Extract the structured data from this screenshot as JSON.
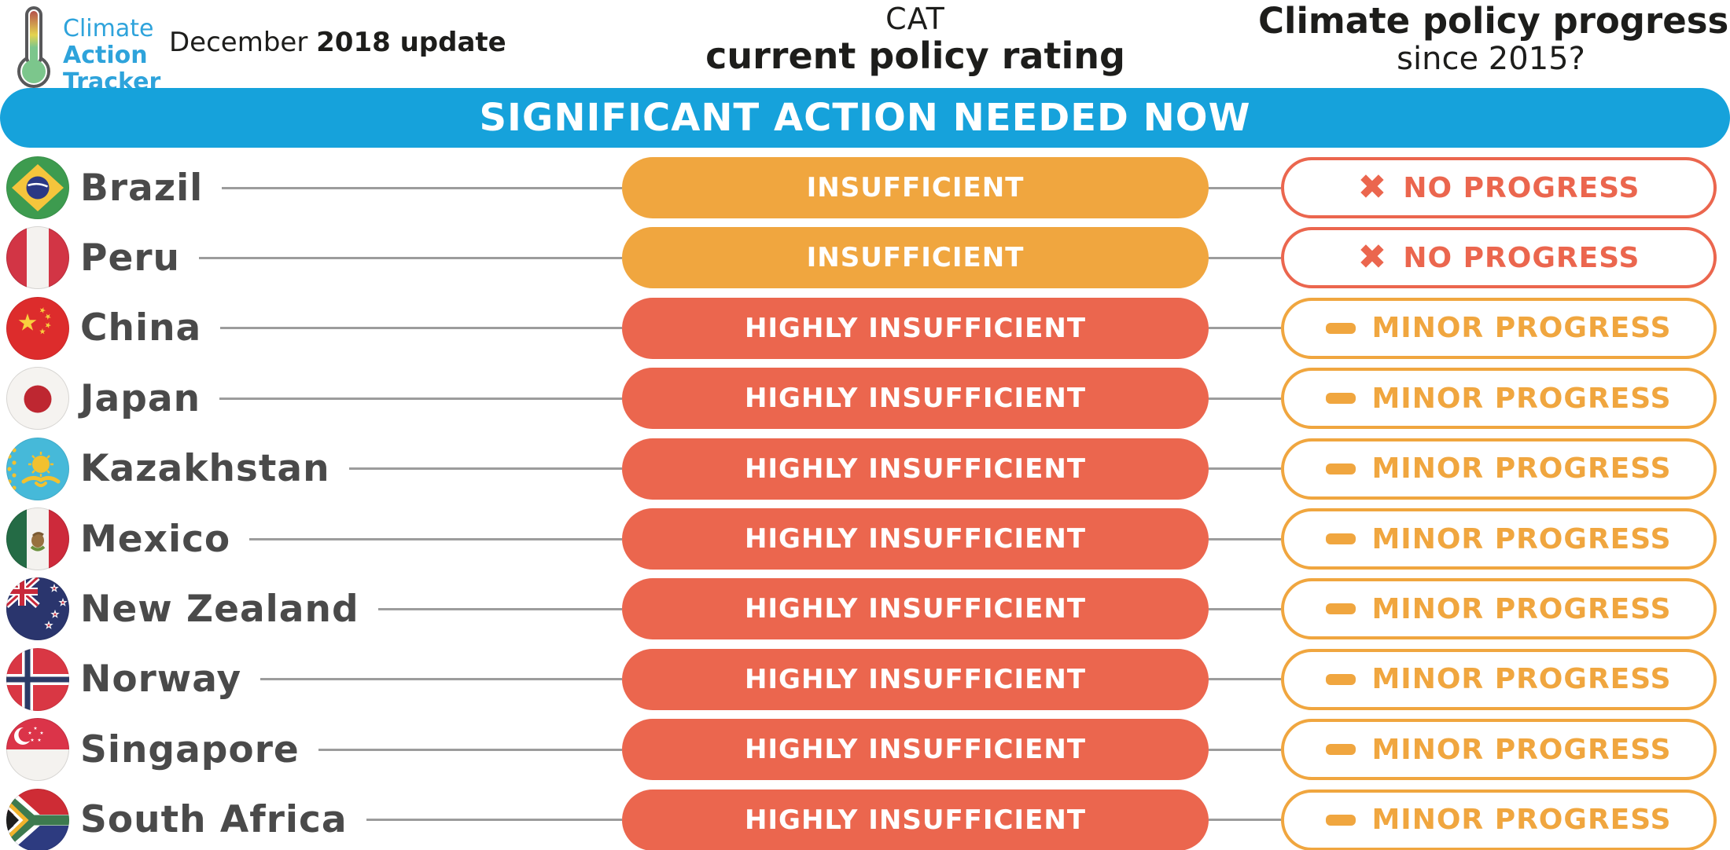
{
  "logo": {
    "line1": "Climate",
    "line2": "Action",
    "line3": "Tracker"
  },
  "header": {
    "date_regular": "December ",
    "date_bold": "2018 update",
    "rating_col_line1": "CAT",
    "rating_col_line2": "current policy rating",
    "progress_col_line1": "Climate policy progress",
    "progress_col_line2": "since 2015?"
  },
  "banner": {
    "label": "SIGNIFICANT ACTION NEEDED NOW",
    "color": "#16a2db"
  },
  "colors": {
    "red_orange": "#eb664e",
    "orange": "#f0a63f",
    "banner_blue": "#16a2db",
    "label_gray": "#4a4a4a",
    "logo_blue": "#2ea3db"
  },
  "chart_data": {
    "type": "table",
    "title": "SIGNIFICANT ACTION NEEDED NOW",
    "subtitle_left": "December 2018 update",
    "columns": [
      "Country",
      "CAT current policy rating",
      "Climate policy progress since 2015?"
    ],
    "rows": [
      [
        "Brazil",
        "INSUFFICIENT",
        "NO PROGRESS"
      ],
      [
        "Peru",
        "INSUFFICIENT",
        "NO PROGRESS"
      ],
      [
        "China",
        "HIGHLY INSUFFICIENT",
        "MINOR PROGRESS"
      ],
      [
        "Japan",
        "HIGHLY INSUFFICIENT",
        "MINOR PROGRESS"
      ],
      [
        "Kazakhstan",
        "HIGHLY INSUFFICIENT",
        "MINOR PROGRESS"
      ],
      [
        "Mexico",
        "HIGHLY INSUFFICIENT",
        "MINOR PROGRESS"
      ],
      [
        "New Zealand",
        "HIGHLY INSUFFICIENT",
        "MINOR PROGRESS"
      ],
      [
        "Norway",
        "HIGHLY INSUFFICIENT",
        "MINOR PROGRESS"
      ],
      [
        "Singapore",
        "HIGHLY INSUFFICIENT",
        "MINOR PROGRESS"
      ],
      [
        "South Africa",
        "HIGHLY INSUFFICIENT",
        "MINOR PROGRESS"
      ]
    ]
  },
  "rows": [
    {
      "country": "Brazil",
      "flag": "flag-brazil-icon",
      "rating": "INSUFFICIENT",
      "rating_color": "#f0a63f",
      "progress": "NO PROGRESS",
      "progress_color": "#eb664e",
      "progress_icon": "x-icon",
      "progress_glyph": "✖"
    },
    {
      "country": "Peru",
      "flag": "flag-peru-icon",
      "rating": "INSUFFICIENT",
      "rating_color": "#f0a63f",
      "progress": "NO PROGRESS",
      "progress_color": "#eb664e",
      "progress_icon": "x-icon",
      "progress_glyph": "✖"
    },
    {
      "country": "China",
      "flag": "flag-china-icon",
      "rating": "HIGHLY INSUFFICIENT",
      "rating_color": "#eb664e",
      "progress": "MINOR PROGRESS",
      "progress_color": "#f0a63f",
      "progress_icon": "minus-icon",
      "progress_glyph": ""
    },
    {
      "country": "Japan",
      "flag": "flag-japan-icon",
      "rating": "HIGHLY INSUFFICIENT",
      "rating_color": "#eb664e",
      "progress": "MINOR PROGRESS",
      "progress_color": "#f0a63f",
      "progress_icon": "minus-icon",
      "progress_glyph": ""
    },
    {
      "country": "Kazakhstan",
      "flag": "flag-kazakhstan-icon",
      "rating": "HIGHLY INSUFFICIENT",
      "rating_color": "#eb664e",
      "progress": "MINOR PROGRESS",
      "progress_color": "#f0a63f",
      "progress_icon": "minus-icon",
      "progress_glyph": ""
    },
    {
      "country": "Mexico",
      "flag": "flag-mexico-icon",
      "rating": "HIGHLY INSUFFICIENT",
      "rating_color": "#eb664e",
      "progress": "MINOR PROGRESS",
      "progress_color": "#f0a63f",
      "progress_icon": "minus-icon",
      "progress_glyph": ""
    },
    {
      "country": "New Zealand",
      "flag": "flag-new-zealand-icon",
      "rating": "HIGHLY INSUFFICIENT",
      "rating_color": "#eb664e",
      "progress": "MINOR PROGRESS",
      "progress_color": "#f0a63f",
      "progress_icon": "minus-icon",
      "progress_glyph": ""
    },
    {
      "country": "Norway",
      "flag": "flag-norway-icon",
      "rating": "HIGHLY INSUFFICIENT",
      "rating_color": "#eb664e",
      "progress": "MINOR PROGRESS",
      "progress_color": "#f0a63f",
      "progress_icon": "minus-icon",
      "progress_glyph": ""
    },
    {
      "country": "Singapore",
      "flag": "flag-singapore-icon",
      "rating": "HIGHLY INSUFFICIENT",
      "rating_color": "#eb664e",
      "progress": "MINOR PROGRESS",
      "progress_color": "#f0a63f",
      "progress_icon": "minus-icon",
      "progress_glyph": ""
    },
    {
      "country": "South Africa",
      "flag": "flag-south-africa-icon",
      "rating": "HIGHLY INSUFFICIENT",
      "rating_color": "#eb664e",
      "progress": "MINOR PROGRESS",
      "progress_color": "#f0a63f",
      "progress_icon": "minus-icon",
      "progress_glyph": ""
    }
  ]
}
